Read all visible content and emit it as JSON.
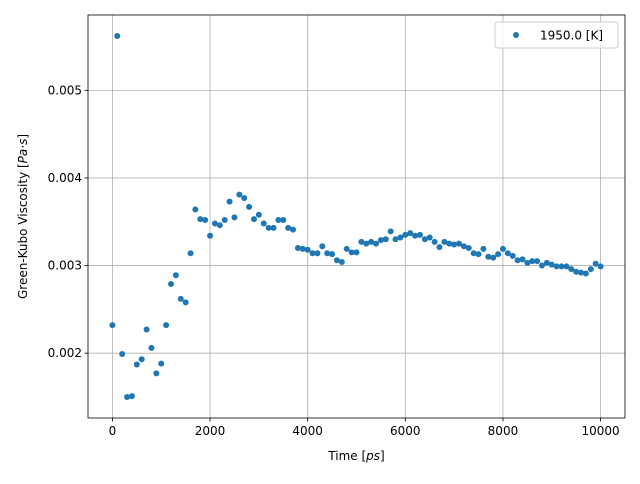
{
  "chart_data": {
    "type": "scatter",
    "xlabel_prefix": "Time ",
    "xlabel_unit": "ps",
    "ylabel_prefix": "Green-Kubo Viscosity ",
    "ylabel_unit": "Pa·s",
    "xlim": [
      -500,
      10500
    ],
    "ylim": [
      0.00126,
      0.00586
    ],
    "xticks": [
      0,
      2000,
      4000,
      6000,
      8000,
      10000
    ],
    "xtick_labels": [
      "0",
      "2000",
      "4000",
      "6000",
      "8000",
      "10000"
    ],
    "yticks": [
      0.002,
      0.003,
      0.004,
      0.005
    ],
    "ytick_labels": [
      "0.002",
      "0.003",
      "0.004",
      "0.005"
    ],
    "grid": true,
    "legend": {
      "placement": "top-right",
      "entries": [
        "1950.0 [K]"
      ]
    },
    "series": [
      {
        "name": "1950.0 [K]",
        "color": "#1f77b4",
        "marker": "circle",
        "x": [
          0,
          100,
          200,
          300,
          400,
          500,
          600,
          700,
          800,
          900,
          1000,
          1100,
          1200,
          1300,
          1400,
          1500,
          1600,
          1700,
          1800,
          1900,
          2000,
          2100,
          2200,
          2300,
          2400,
          2500,
          2600,
          2700,
          2800,
          2900,
          3000,
          3100,
          3200,
          3300,
          3400,
          3500,
          3600,
          3700,
          3800,
          3900,
          4000,
          4100,
          4200,
          4300,
          4400,
          4500,
          4600,
          4700,
          4800,
          4900,
          5000,
          5100,
          5200,
          5300,
          5400,
          5500,
          5600,
          5700,
          5800,
          5900,
          6000,
          6100,
          6200,
          6300,
          6400,
          6500,
          6600,
          6700,
          6800,
          6900,
          7000,
          7100,
          7200,
          7300,
          7400,
          7500,
          7600,
          7700,
          7800,
          7900,
          8000,
          8100,
          8200,
          8300,
          8400,
          8500,
          8600,
          8700,
          8800,
          8900,
          9000,
          9100,
          9200,
          9300,
          9400,
          9500,
          9600,
          9700,
          9800,
          9900,
          10000
        ],
        "y": [
          0.00232,
          0.00562,
          0.00199,
          0.0015,
          0.00151,
          0.00187,
          0.00193,
          0.00227,
          0.00206,
          0.00177,
          0.00188,
          0.00232,
          0.00279,
          0.00289,
          0.00262,
          0.00258,
          0.00314,
          0.00364,
          0.00353,
          0.00352,
          0.00334,
          0.00348,
          0.00346,
          0.00352,
          0.00373,
          0.00355,
          0.00381,
          0.00377,
          0.00367,
          0.00353,
          0.00358,
          0.00348,
          0.00343,
          0.00343,
          0.00352,
          0.00352,
          0.00343,
          0.00341,
          0.0032,
          0.00319,
          0.00318,
          0.00314,
          0.00314,
          0.00322,
          0.00314,
          0.00313,
          0.00306,
          0.00304,
          0.00319,
          0.00315,
          0.00315,
          0.00327,
          0.00325,
          0.00327,
          0.00325,
          0.00329,
          0.0033,
          0.00339,
          0.0033,
          0.00332,
          0.00335,
          0.00337,
          0.00334,
          0.00335,
          0.0033,
          0.00332,
          0.00327,
          0.00321,
          0.00327,
          0.00325,
          0.00324,
          0.00325,
          0.00322,
          0.0032,
          0.00314,
          0.00313,
          0.00319,
          0.0031,
          0.00309,
          0.00313,
          0.00319,
          0.00314,
          0.00311,
          0.00306,
          0.00307,
          0.00303,
          0.00305,
          0.00305,
          0.003,
          0.00303,
          0.00301,
          0.00299,
          0.00299,
          0.00299,
          0.00296,
          0.00293,
          0.00292,
          0.00291,
          0.00296,
          0.00302,
          0.00299
        ]
      }
    ]
  }
}
